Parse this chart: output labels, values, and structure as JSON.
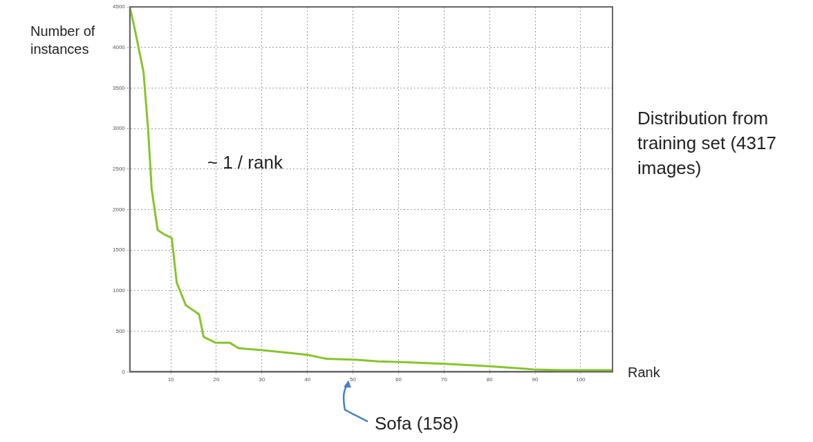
{
  "chart_data": {
    "type": "line",
    "xlabel": "Rank",
    "ylabel": "Number of instances",
    "x": [
      1,
      2,
      4,
      5,
      5.8,
      7.1,
      8.4,
      10.2,
      11.3,
      13.3,
      16.2,
      17.2,
      19.8,
      22.9,
      24.9,
      29.6,
      34.9,
      40,
      44.2,
      50.4,
      55.5,
      60.6,
      70,
      79.9,
      89.7,
      96,
      106.7
    ],
    "series": [
      {
        "color": "#86c42a",
        "values": [
          4500,
          4250,
          3700,
          3000,
          2250,
          1750,
          1700,
          1650,
          1100,
          820,
          710,
          430,
          360,
          360,
          290,
          270,
          240,
          210,
          160,
          150,
          130,
          120,
          100,
          70,
          30,
          20,
          20
        ]
      }
    ],
    "xlim": [
      1,
      107
    ],
    "xticks": [
      10,
      20,
      30,
      40,
      50,
      60,
      70,
      80,
      90,
      100
    ],
    "ylim": [
      0,
      4500
    ],
    "yticks": [
      0,
      500,
      1000,
      1500,
      2000,
      2500,
      3000,
      3500,
      4000,
      4500
    ],
    "grid": true,
    "legend": false,
    "marker": "none",
    "line_style": "solid",
    "annotations": [
      "~ 1 / rank",
      "Distribution from training set (4317  images)",
      "Sofa (158)"
    ]
  }
}
